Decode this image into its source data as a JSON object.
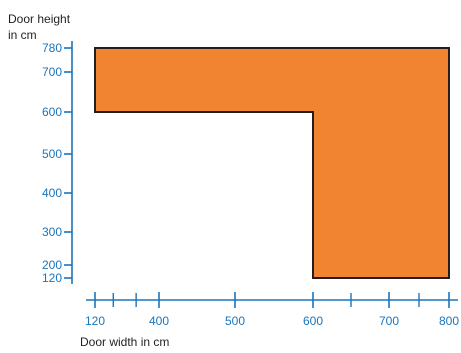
{
  "chart_data": {
    "type": "area",
    "ylabel_line1": "Door height",
    "ylabel_line2": "in cm",
    "xlabel": "Door width in cm",
    "xlim": [
      120,
      800
    ],
    "ylim": [
      120,
      780
    ],
    "x_ticks": [
      120,
      400,
      500,
      600,
      700,
      800
    ],
    "y_ticks": [
      780,
      700,
      600,
      500,
      400,
      300,
      200,
      120
    ],
    "x_minor_ticks": [
      200,
      300,
      650,
      750
    ],
    "region": {
      "name": "",
      "points": [
        {
          "x": 120,
          "y": 780
        },
        {
          "x": 800,
          "y": 780
        },
        {
          "x": 800,
          "y": 120
        },
        {
          "x": 600,
          "y": 120
        },
        {
          "x": 600,
          "y": 600
        },
        {
          "x": 120,
          "y": 600
        }
      ]
    },
    "colors": {
      "fill": "#f08431",
      "outline": "#231f20",
      "axis": "#1b75bc",
      "tick_text": "#1b75bc",
      "title_text": "#231f20"
    },
    "grid": false
  }
}
